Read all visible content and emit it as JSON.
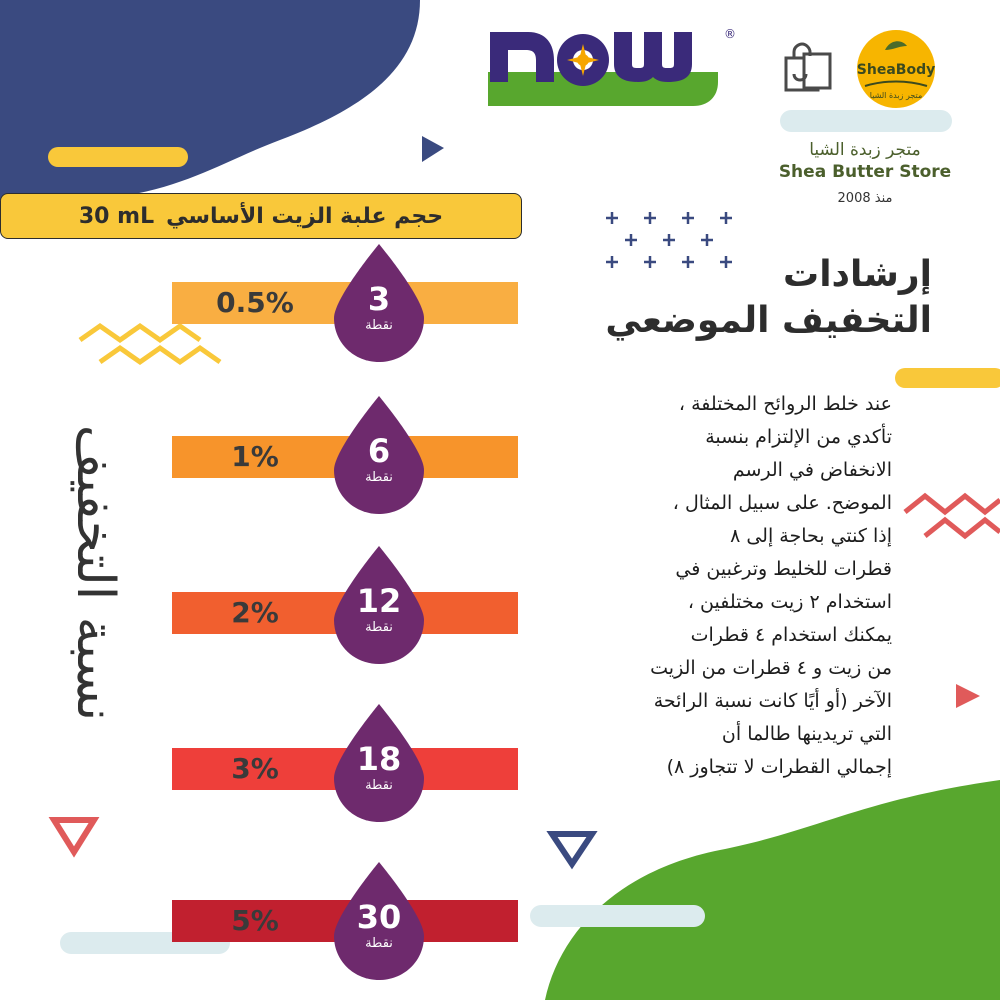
{
  "brand": {
    "logo_text": "NOW",
    "registered_mark": "®",
    "store_badge_text": "SheaBody",
    "store_badge_sub": "متجر زبدة الشيا",
    "store_name_ar": "متجر زبدة الشيا",
    "store_name_en": "Shea Butter Store",
    "since": "منذ 2008"
  },
  "size_bar": {
    "label": "حجم علبة الزيت الأساسي",
    "value": "30 mL"
  },
  "heading": {
    "line1": "إرشادات",
    "line2": "التخفيف الموضعي"
  },
  "body_lines": [
    "عند خلط الروائح المختلفة ،",
    "تأكدي من الإلتزام بنسبة",
    "الانخفاض في الرسم",
    "الموضح. على سبيل المثال ،",
    "إذا كنتي بحاجة إلى ٨",
    "قطرات للخليط وترغبين في",
    "استخدام ٢ زيت مختلفين ،",
    "يمكنك استخدام ٤ قطرات",
    "من زيت و ٤ قطرات من الزيت",
    "الآخر (أو أيًا كانت نسبة الرائحة",
    "التي تريدينها طالما أن",
    "إجمالي القطرات لا تتجاوز ٨)"
  ],
  "side_label": "نسبة التخفيف",
  "rows": [
    {
      "percent": "0.5%",
      "drops": "3",
      "unit": "نقطة",
      "color": "#f9ae42"
    },
    {
      "percent": "1%",
      "drops": "6",
      "unit": "نقطة",
      "color": "#f7942b"
    },
    {
      "percent": "2%",
      "drops": "12",
      "unit": "نقطة",
      "color": "#f15f2f"
    },
    {
      "percent": "3%",
      "drops": "18",
      "unit": "نقطة",
      "color": "#ee3f3a"
    },
    {
      "percent": "5%",
      "drops": "30",
      "unit": "نقطة",
      "color": "#c1202f"
    }
  ],
  "colors": {
    "navy": "#3a4a80",
    "green": "#58a72e",
    "purple": "#6e2a6d",
    "yellow": "#f9c83a",
    "light_blue": "#dcebee",
    "coral": "#e05a5a"
  }
}
